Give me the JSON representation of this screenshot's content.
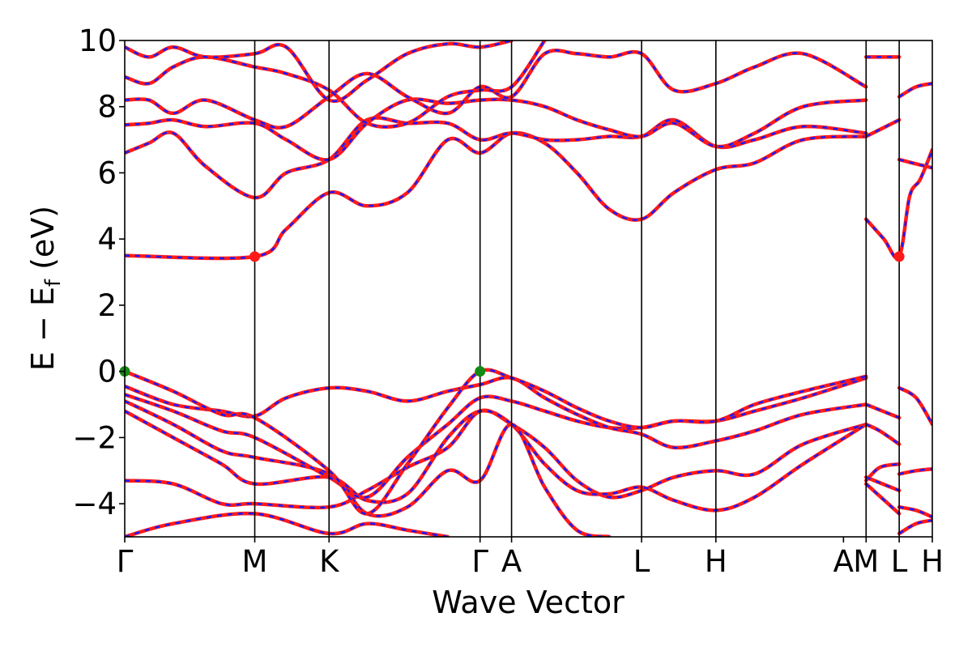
{
  "chart_data": {
    "type": "line",
    "xlabel": "Wave Vector",
    "ylabel_main": "E − E",
    "ylabel_sub": "f",
    "ylabel_unit": " (eV)",
    "ylim": [
      -5,
      10
    ],
    "yticks": [
      -4,
      -2,
      0,
      2,
      4,
      6,
      8,
      10
    ],
    "ytick_labels": [
      "−4",
      "−2",
      "0",
      "2",
      "4",
      "6",
      "8",
      "10"
    ],
    "kpath_positions": [
      0,
      0.161,
      0.253,
      0.44,
      0.479,
      0.64,
      0.732,
      0.918,
      0.959,
      1.0
    ],
    "kpath_labels": [
      "Γ",
      "M",
      "K",
      "Γ",
      "A",
      "L",
      "H",
      "A",
      "M",
      "L",
      "H"
    ],
    "kpath_label_positions": [
      0,
      0.161,
      0.253,
      0.44,
      0.479,
      0.64,
      0.732,
      0.89,
      0.918,
      0.959,
      1.0
    ],
    "colors": {
      "band_red": "#ff1a1a",
      "band_blue": "#1a1aff",
      "cbm_marker": "#ff1a1a",
      "vbm_marker": "#138a13"
    },
    "markers": [
      {
        "name": "CBM",
        "x": 0.161,
        "y": 3.47,
        "color": "#ff1a1a"
      },
      {
        "name": "CBM",
        "x": 0.959,
        "y": 3.47,
        "color": "#ff1a1a"
      },
      {
        "name": "VBM",
        "x": 0.0,
        "y": 0.0,
        "color": "#138a13"
      },
      {
        "name": "VBM",
        "x": 0.44,
        "y": 0.0,
        "color": "#138a13"
      }
    ],
    "bands": [
      [
        [
          0,
          -5.0
        ],
        [
          0.06,
          -4.6
        ],
        [
          0.161,
          -4.3
        ],
        [
          0.253,
          -4.9
        ],
        [
          0.3,
          -4.6
        ],
        [
          0.35,
          -4.8
        ],
        [
          0.4,
          -5.0
        ]
      ],
      [
        [
          0,
          -3.3
        ],
        [
          0.06,
          -3.4
        ],
        [
          0.12,
          -4.0
        ],
        [
          0.161,
          -4.0
        ],
        [
          0.253,
          -4.1
        ],
        [
          0.3,
          -3.6
        ],
        [
          0.35,
          -2.9
        ],
        [
          0.4,
          -2.3
        ],
        [
          0.44,
          -1.2
        ],
        [
          0.479,
          -1.6
        ],
        [
          0.52,
          -2.3
        ],
        [
          0.56,
          -3.3
        ],
        [
          0.6,
          -3.8
        ],
        [
          0.64,
          -3.6
        ],
        [
          0.68,
          -3.2
        ],
        [
          0.732,
          -3.0
        ],
        [
          0.78,
          -3.1
        ],
        [
          0.84,
          -2.2
        ],
        [
          0.918,
          -1.6
        ]
      ],
      [
        [
          0,
          -1.2
        ],
        [
          0.06,
          -2.0
        ],
        [
          0.12,
          -2.8
        ],
        [
          0.161,
          -3.4
        ],
        [
          0.253,
          -3.2
        ],
        [
          0.3,
          -3.9
        ],
        [
          0.35,
          -3.7
        ],
        [
          0.4,
          -2.0
        ],
        [
          0.44,
          -1.2
        ],
        [
          0.479,
          -1.6
        ],
        [
          0.52,
          -2.8
        ],
        [
          0.56,
          -3.6
        ],
        [
          0.6,
          -3.7
        ],
        [
          0.64,
          -3.5
        ],
        [
          0.68,
          -3.9
        ],
        [
          0.732,
          -4.2
        ],
        [
          0.78,
          -3.8
        ],
        [
          0.84,
          -2.8
        ],
        [
          0.918,
          -1.6
        ]
      ],
      [
        [
          0,
          -0.9
        ],
        [
          0.06,
          -1.6
        ],
        [
          0.12,
          -2.4
        ],
        [
          0.161,
          -2.6
        ],
        [
          0.253,
          -3.1
        ],
        [
          0.3,
          -4.3
        ],
        [
          0.35,
          -4.1
        ],
        [
          0.4,
          -3.0
        ],
        [
          0.44,
          -3.3
        ],
        [
          0.479,
          -1.6
        ],
        [
          0.52,
          -3.5
        ],
        [
          0.56,
          -4.8
        ],
        [
          0.6,
          -5.0
        ]
      ],
      [
        [
          0,
          -0.7
        ],
        [
          0.06,
          -1.2
        ],
        [
          0.12,
          -1.8
        ],
        [
          0.161,
          -2.0
        ],
        [
          0.253,
          -3.2
        ],
        [
          0.3,
          -3.8
        ],
        [
          0.35,
          -2.6
        ],
        [
          0.4,
          -1.6
        ],
        [
          0.44,
          -0.8
        ],
        [
          0.479,
          -0.9
        ],
        [
          0.52,
          -1.2
        ],
        [
          0.56,
          -1.5
        ],
        [
          0.6,
          -1.7
        ],
        [
          0.64,
          -1.7
        ],
        [
          0.68,
          -1.5
        ],
        [
          0.732,
          -1.5
        ],
        [
          0.78,
          -1.2
        ],
        [
          0.84,
          -0.8
        ],
        [
          0.918,
          -0.2
        ]
      ],
      [
        [
          0,
          -0.45
        ],
        [
          0.06,
          -1.0
        ],
        [
          0.12,
          -1.2
        ],
        [
          0.161,
          -1.35
        ],
        [
          0.2,
          -0.8
        ],
        [
          0.253,
          -0.5
        ],
        [
          0.3,
          -0.6
        ],
        [
          0.35,
          -0.9
        ],
        [
          0.4,
          -0.6
        ],
        [
          0.44,
          -0.4
        ],
        [
          0.479,
          -0.2
        ],
        [
          0.52,
          -0.8
        ],
        [
          0.56,
          -1.3
        ],
        [
          0.6,
          -1.7
        ],
        [
          0.64,
          -1.9
        ],
        [
          0.68,
          -2.3
        ],
        [
          0.732,
          -2.1
        ],
        [
          0.78,
          -1.8
        ],
        [
          0.84,
          -1.3
        ],
        [
          0.918,
          -1.0
        ]
      ],
      [
        [
          0,
          0.0
        ],
        [
          0.06,
          -0.6
        ],
        [
          0.12,
          -1.3
        ],
        [
          0.161,
          -1.4
        ],
        [
          0.253,
          -3.0
        ],
        [
          0.3,
          -4.3
        ],
        [
          0.35,
          -2.8
        ],
        [
          0.4,
          -1.1
        ],
        [
          0.44,
          0.0
        ],
        [
          0.479,
          -0.2
        ],
        [
          0.52,
          -0.6
        ],
        [
          0.56,
          -1.1
        ],
        [
          0.6,
          -1.5
        ],
        [
          0.64,
          -1.7
        ],
        [
          0.68,
          -1.5
        ],
        [
          0.732,
          -1.5
        ],
        [
          0.78,
          -1.0
        ],
        [
          0.84,
          -0.6
        ],
        [
          0.918,
          -0.15
        ]
      ],
      [
        [
          0,
          3.5
        ],
        [
          0.161,
          3.47
        ],
        [
          0.2,
          4.3
        ],
        [
          0.253,
          5.4
        ],
        [
          0.3,
          5.0
        ],
        [
          0.35,
          5.4
        ],
        [
          0.4,
          7.0
        ],
        [
          0.44,
          6.6
        ],
        [
          0.479,
          7.2
        ],
        [
          0.52,
          6.9
        ],
        [
          0.56,
          6.0
        ],
        [
          0.6,
          4.9
        ],
        [
          0.64,
          4.6
        ],
        [
          0.68,
          5.4
        ],
        [
          0.732,
          6.1
        ],
        [
          0.78,
          6.3
        ],
        [
          0.84,
          7.0
        ],
        [
          0.918,
          7.1
        ]
      ],
      [
        [
          0,
          6.6
        ],
        [
          0.03,
          6.9
        ],
        [
          0.06,
          7.2
        ],
        [
          0.1,
          6.2
        ],
        [
          0.161,
          5.25
        ],
        [
          0.2,
          6.0
        ],
        [
          0.253,
          6.4
        ],
        [
          0.3,
          7.6
        ],
        [
          0.35,
          7.5
        ],
        [
          0.4,
          7.5
        ],
        [
          0.44,
          7.0
        ],
        [
          0.479,
          7.2
        ],
        [
          0.52,
          7.0
        ],
        [
          0.56,
          7.0
        ],
        [
          0.6,
          7.1
        ],
        [
          0.64,
          7.1
        ],
        [
          0.68,
          7.6
        ],
        [
          0.732,
          6.8
        ],
        [
          0.78,
          7.0
        ],
        [
          0.84,
          7.4
        ],
        [
          0.918,
          7.2
        ]
      ],
      [
        [
          0,
          7.45
        ],
        [
          0.03,
          7.5
        ],
        [
          0.06,
          7.6
        ],
        [
          0.1,
          7.4
        ],
        [
          0.161,
          7.5
        ],
        [
          0.2,
          7.0
        ],
        [
          0.253,
          6.4
        ],
        [
          0.3,
          7.5
        ],
        [
          0.35,
          8.2
        ],
        [
          0.4,
          8.1
        ],
        [
          0.44,
          8.2
        ],
        [
          0.479,
          8.2
        ],
        [
          0.52,
          8.0
        ],
        [
          0.56,
          7.6
        ],
        [
          0.6,
          7.3
        ],
        [
          0.64,
          7.1
        ],
        [
          0.68,
          7.5
        ],
        [
          0.732,
          6.8
        ],
        [
          0.78,
          7.2
        ],
        [
          0.84,
          8.0
        ],
        [
          0.918,
          8.2
        ]
      ],
      [
        [
          0,
          8.2
        ],
        [
          0.03,
          8.2
        ],
        [
          0.06,
          7.8
        ],
        [
          0.1,
          8.2
        ],
        [
          0.161,
          7.6
        ],
        [
          0.2,
          7.4
        ],
        [
          0.253,
          8.3
        ],
        [
          0.3,
          9.0
        ],
        [
          0.35,
          8.3
        ],
        [
          0.4,
          7.8
        ],
        [
          0.44,
          8.6
        ],
        [
          0.479,
          8.3
        ],
        [
          0.52,
          9.6
        ],
        [
          0.56,
          9.6
        ],
        [
          0.6,
          9.5
        ],
        [
          0.64,
          9.6
        ],
        [
          0.68,
          8.5
        ],
        [
          0.732,
          8.7
        ],
        [
          0.78,
          9.2
        ],
        [
          0.84,
          9.6
        ],
        [
          0.918,
          8.6
        ]
      ],
      [
        [
          0,
          8.9
        ],
        [
          0.03,
          8.7
        ],
        [
          0.06,
          9.2
        ],
        [
          0.1,
          9.5
        ],
        [
          0.161,
          9.2
        ],
        [
          0.2,
          9.0
        ],
        [
          0.253,
          8.5
        ],
        [
          0.3,
          7.5
        ],
        [
          0.35,
          7.5
        ],
        [
          0.4,
          8.3
        ],
        [
          0.44,
          8.5
        ],
        [
          0.479,
          8.6
        ],
        [
          0.52,
          10.0
        ]
      ],
      [
        [
          0,
          9.8
        ],
        [
          0.03,
          9.5
        ],
        [
          0.06,
          9.8
        ],
        [
          0.1,
          9.5
        ],
        [
          0.161,
          9.6
        ],
        [
          0.2,
          9.8
        ],
        [
          0.253,
          8.2
        ],
        [
          0.3,
          8.8
        ],
        [
          0.35,
          9.6
        ],
        [
          0.4,
          9.9
        ],
        [
          0.44,
          9.8
        ],
        [
          0.479,
          10.0
        ]
      ]
    ],
    "tail_bands": [
      [
        [
          0.918,
          4.6
        ],
        [
          0.94,
          4.0
        ],
        [
          0.959,
          3.47
        ],
        [
          0.972,
          5.3
        ],
        [
          0.985,
          5.8
        ],
        [
          1.0,
          6.7
        ]
      ],
      [
        [
          0.918,
          7.1
        ],
        [
          0.959,
          7.6
        ]
      ],
      [
        [
          0.918,
          9.5
        ],
        [
          0.959,
          9.5
        ]
      ],
      [
        [
          0.959,
          6.4
        ],
        [
          0.975,
          6.3
        ],
        [
          1.0,
          6.15
        ]
      ],
      [
        [
          0.959,
          8.3
        ],
        [
          0.98,
          8.6
        ],
        [
          1.0,
          8.7
        ]
      ],
      [
        [
          0.918,
          -1.0
        ],
        [
          0.959,
          -1.4
        ]
      ],
      [
        [
          0.918,
          -1.6
        ],
        [
          0.935,
          -1.8
        ],
        [
          0.959,
          -2.2
        ]
      ],
      [
        [
          0.918,
          -3.3
        ],
        [
          0.935,
          -2.9
        ],
        [
          0.959,
          -2.8
        ]
      ],
      [
        [
          0.918,
          -3.2
        ],
        [
          0.959,
          -3.6
        ]
      ],
      [
        [
          0.918,
          -3.4
        ],
        [
          0.959,
          -4.3
        ]
      ],
      [
        [
          0.959,
          -0.5
        ],
        [
          0.98,
          -0.8
        ],
        [
          1.0,
          -1.6
        ]
      ],
      [
        [
          0.959,
          -3.1
        ],
        [
          0.98,
          -3.0
        ],
        [
          1.0,
          -2.95
        ]
      ],
      [
        [
          0.959,
          -4.1
        ],
        [
          0.98,
          -4.2
        ],
        [
          1.0,
          -4.4
        ]
      ],
      [
        [
          0.959,
          -4.9
        ],
        [
          0.98,
          -4.6
        ],
        [
          1.0,
          -4.5
        ]
      ]
    ]
  }
}
